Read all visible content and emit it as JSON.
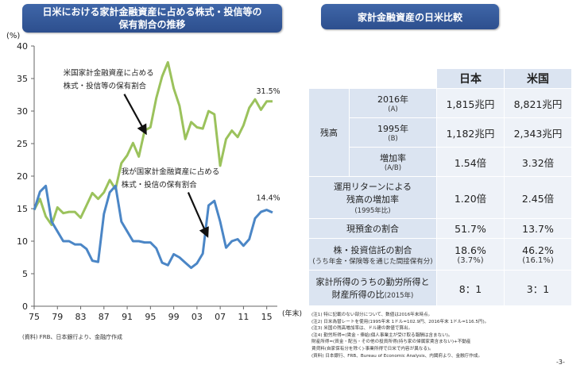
{
  "left_title": [
    "日米における家計金融資産に占める株式・投信等の",
    "保有割合の推移"
  ],
  "right_title": "家計金融資産の日米比較",
  "chart_data": {
    "type": "line",
    "ylabel": "(%)",
    "xlabel": "(年末)",
    "x": [
      1975,
      1976,
      1977,
      1978,
      1979,
      1980,
      1981,
      1982,
      1983,
      1984,
      1985,
      1986,
      1987,
      1988,
      1989,
      1990,
      1991,
      1992,
      1993,
      1994,
      1995,
      1996,
      1997,
      1998,
      1999,
      2000,
      2001,
      2002,
      2003,
      2004,
      2005,
      2006,
      2007,
      2008,
      2009,
      2010,
      2011,
      2012,
      2013,
      2014,
      2015,
      2016
    ],
    "xticks": [
      "75",
      "79",
      "83",
      "87",
      "91",
      "95",
      "99",
      "03",
      "07",
      "11",
      "15"
    ],
    "xtick_values": [
      1975,
      1979,
      1983,
      1987,
      1991,
      1995,
      1999,
      2003,
      2007,
      2011,
      2015
    ],
    "ylim": [
      0,
      40
    ],
    "yticks": [
      0,
      5,
      10,
      15,
      20,
      25,
      30,
      35,
      40
    ],
    "series": [
      {
        "color": "#9bc25c",
        "values": [
          14.8,
          16.5,
          13.8,
          12.5,
          15.2,
          14.3,
          14.5,
          14.5,
          13.6,
          15.5,
          17.4,
          16.5,
          17.5,
          19.4,
          18.0,
          22.0,
          23.2,
          25.1,
          23.0,
          27.0,
          27.5,
          32.0,
          35.3,
          37.5,
          33.5,
          30.8,
          25.7,
          28.3,
          27.5,
          27.3,
          30.0,
          29.5,
          21.6,
          25.7,
          27.0,
          26.0,
          27.8,
          30.5,
          31.8,
          30.2,
          31.5,
          31.5
        ]
      },
      {
        "color": "#4b86c6",
        "values": [
          14.8,
          17.6,
          18.5,
          13.0,
          11.5,
          10.0,
          10.0,
          9.5,
          9.5,
          8.8,
          7.0,
          6.8,
          14.2,
          17.5,
          18.5,
          13.0,
          11.5,
          10.0,
          10.0,
          9.8,
          9.8,
          8.9,
          6.7,
          6.3,
          8.0,
          7.5,
          6.7,
          5.9,
          6.6,
          8.1,
          15.5,
          16.2,
          13.0,
          9.0,
          10.0,
          10.3,
          9.3,
          10.3,
          13.5,
          14.5,
          14.8,
          14.4
        ]
      }
    ],
    "annotations": [
      {
        "text": "米国家計金融資産に占める",
        "x": 1980,
        "y": 35.5
      },
      {
        "text": "株式・投信等の保有割合",
        "x": 1980,
        "y": 33.5
      },
      {
        "text": "我が国家計金融資産に占める",
        "x": 1990,
        "y": 20.3
      },
      {
        "text": "株式・投信の保有割合",
        "x": 1990,
        "y": 18.3
      },
      {
        "text": "31.5%",
        "x": 2013.2,
        "y": 32.7
      },
      {
        "text": "14.4%",
        "x": 2013.2,
        "y": 16.3
      }
    ]
  },
  "table": {
    "col_headers": [
      "日本",
      "米国"
    ],
    "rows": [
      {
        "group": "残高",
        "label": "2016年",
        "sub": "(A)",
        "jp": "1,815兆円",
        "us": "8,821兆円"
      },
      {
        "label": "1995年",
        "sub": "(B)",
        "jp": "1,182兆円",
        "us": "2,343兆円"
      },
      {
        "label": "増加率",
        "sub": "(A/B)",
        "jp": "1.54倍",
        "us": "3.32倍"
      },
      {
        "label": "運用リターンによる",
        "label2": "残高の増加率",
        "sub": "(1995年比)",
        "jp": "1.20倍",
        "us": "2.45倍"
      },
      {
        "label": "現預金の割合",
        "jp": "51.7%",
        "us": "13.7%"
      },
      {
        "label": "株・投資信託の割合",
        "sub": "(うち年金・保険等を通じた間接保有分)",
        "jp": "18.6%",
        "jp_sub": "(3.7%)",
        "us": "46.2%",
        "us_sub": "(16.1%)"
      },
      {
        "label": "家計所得のうちの勤労所得と",
        "label2": "財産所得の比",
        "label2_sub": "(2015年)",
        "jp": "8：1",
        "us": "3：1"
      }
    ]
  },
  "notes": [
    "(注1) 特に記載のない部分について、数値は2016年末時点。",
    "(注2) 日米為替レートを使用(1995年末 1ドル=102.9円、2016年末 1ドル=116.5円)。",
    "(注3) 米国の残高増加率は、ドル建の数値で算出。",
    "(注4) 勤労所得=(賃金・俸給(個人事業主が受け取る報酬は含まない)。",
    "       財産所得=(資金・配当・その他の投資所得(持ち家の帰属家賃含まない)+不動産",
    "       賃貸料(自家保有分を除く)·事業所得で日米で内容が異なる)。",
    "(資料) 日本銀行、FRB、Bureau of Economic Analysis、内閣府より、金融庁作成。"
  ],
  "source_left": "(資料) FRB、日本銀行より、金融庁作成",
  "page_number": "-3-"
}
